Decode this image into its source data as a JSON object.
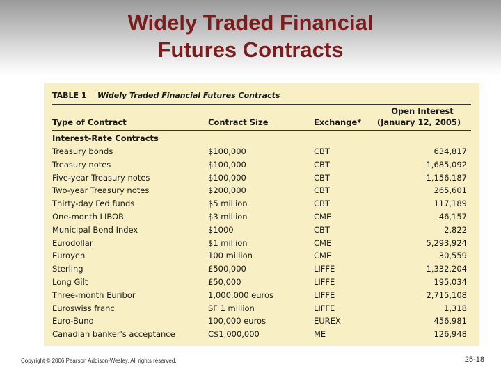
{
  "slide": {
    "title_lines": [
      "Widely Traded Financial",
      "Futures Contracts"
    ],
    "table": {
      "label": "TABLE 1",
      "caption": "Widely Traded Financial Futures Contracts",
      "headers": [
        "Type of Contract",
        "Contract Size",
        "Exchange*"
      ],
      "open_interest_header": [
        "Open Interest",
        "(January 12, 2005)"
      ],
      "section": "Interest-Rate Contracts",
      "rows": [
        [
          "Treasury bonds",
          "$100,000",
          "CBT",
          "634,817"
        ],
        [
          "Treasury notes",
          "$100,000",
          "CBT",
          "1,685,092"
        ],
        [
          "Five-year Treasury notes",
          "$100,000",
          "CBT",
          "1,156,187"
        ],
        [
          "Two-year Treasury notes",
          "$200,000",
          "CBT",
          "265,601"
        ],
        [
          "Thirty-day Fed funds",
          "$5 million",
          "CBT",
          "117,189"
        ],
        [
          "One-month LIBOR",
          "$3 million",
          "CME",
          "46,157"
        ],
        [
          "Municipal Bond Index",
          "$1000",
          "CBT",
          "2,822"
        ],
        [
          "Eurodollar",
          "$1 million",
          "CME",
          "5,293,924"
        ],
        [
          "Euroyen",
          "100 million",
          "CME",
          "30,559"
        ],
        [
          "Sterling",
          "£500,000",
          "LIFFE",
          "1,332,204"
        ],
        [
          "Long Gilt",
          "£50,000",
          "LIFFE",
          "195,034"
        ],
        [
          "Three-month Euribor",
          "1,000,000 euros",
          "LIFFE",
          "2,715,108"
        ],
        [
          "Euroswiss franc",
          "SF 1 million",
          "LIFFE",
          "1,318"
        ],
        [
          "Euro-Buno",
          "100,000 euros",
          "EUREX",
          "456,981"
        ],
        [
          "Canadian banker's acceptance",
          "C$1,000,000",
          "ME",
          "126,948"
        ]
      ]
    },
    "copyright": "Copyright © 2006 Pearson Addison-Wesley. All rights reserved.",
    "page_number": "25-18"
  }
}
